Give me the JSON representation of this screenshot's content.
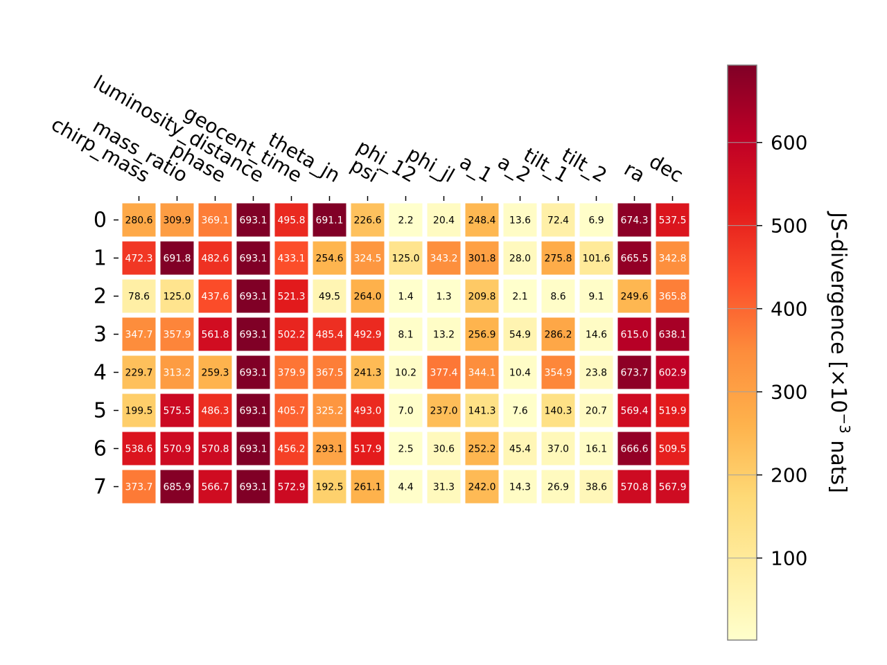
{
  "chart_data": {
    "type": "heatmap",
    "title": "",
    "x_tick_labels": [
      "chirp_mass",
      "mass_ratio",
      "phase",
      "luminosity_distance",
      "geocent_time",
      "theta_jn",
      "psi",
      "phi_12",
      "phi_jl",
      "a_1",
      "a_2",
      "tilt_1",
      "tilt_2",
      "ra",
      "dec"
    ],
    "y_tick_labels": [
      "0",
      "1",
      "2",
      "3",
      "4",
      "5",
      "6",
      "7"
    ],
    "values": [
      [
        280.6,
        309.9,
        369.1,
        693.1,
        495.8,
        691.1,
        226.6,
        2.2,
        20.4,
        248.4,
        13.6,
        72.4,
        6.9,
        674.3,
        537.5
      ],
      [
        472.3,
        691.8,
        482.6,
        693.1,
        433.1,
        254.6,
        324.5,
        125.0,
        343.2,
        301.8,
        28.0,
        275.8,
        101.6,
        665.5,
        342.8
      ],
      [
        78.6,
        125.0,
        437.6,
        693.1,
        521.3,
        49.5,
        264.0,
        1.4,
        1.3,
        209.8,
        2.1,
        8.6,
        9.1,
        249.6,
        365.8
      ],
      [
        347.7,
        357.9,
        561.8,
        693.1,
        502.2,
        485.4,
        492.9,
        8.1,
        13.2,
        256.9,
        54.9,
        286.2,
        14.6,
        615.0,
        638.1
      ],
      [
        229.7,
        313.2,
        259.3,
        693.1,
        379.9,
        367.5,
        241.3,
        10.2,
        377.4,
        344.1,
        10.4,
        354.9,
        23.8,
        673.7,
        602.9
      ],
      [
        199.5,
        575.5,
        486.3,
        693.1,
        405.7,
        325.2,
        493.0,
        7.0,
        237.0,
        141.3,
        7.6,
        140.3,
        20.7,
        569.4,
        519.9
      ],
      [
        538.6,
        570.9,
        570.8,
        693.1,
        456.2,
        293.1,
        517.9,
        2.5,
        30.6,
        252.2,
        45.4,
        37.0,
        16.1,
        666.6,
        509.5
      ],
      [
        373.7,
        685.9,
        566.7,
        693.1,
        572.9,
        192.5,
        261.1,
        4.4,
        31.3,
        242.0,
        14.3,
        26.9,
        38.6,
        570.8,
        567.9
      ]
    ],
    "colormap": "YlOrRd",
    "value_range": [
      1.3,
      693.1
    ],
    "colorbar": {
      "label": "JS-divergence [×10",
      "label_exponent": "−3",
      "label_suffix": " nats]",
      "ticks": [
        100,
        200,
        300,
        400,
        500,
        600
      ]
    },
    "grid": false
  }
}
